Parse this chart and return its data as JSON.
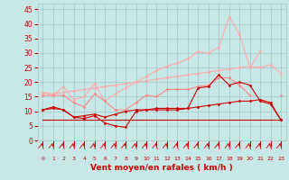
{
  "x": [
    0,
    1,
    2,
    3,
    4,
    5,
    6,
    7,
    8,
    9,
    10,
    11,
    12,
    13,
    14,
    15,
    16,
    17,
    18,
    19,
    20,
    21,
    22,
    23
  ],
  "series": [
    {
      "name": "line1_light_pink_upper",
      "color": "#ffaaaa",
      "linewidth": 0.8,
      "marker": "D",
      "markersize": 1.5,
      "values": [
        16.5,
        15.5,
        18.5,
        14.0,
        15.0,
        19.5,
        13.5,
        16.0,
        18.0,
        20.0,
        22.0,
        24.0,
        25.5,
        26.5,
        28.0,
        30.5,
        30.0,
        32.0,
        42.5,
        36.5,
        25.0,
        30.5,
        null,
        null
      ]
    },
    {
      "name": "line2_light_pink_diagonal",
      "color": "#ffaaaa",
      "linewidth": 0.8,
      "marker": "D",
      "markersize": 1.5,
      "values": [
        16.5,
        16.0,
        16.5,
        17.0,
        17.5,
        18.0,
        18.5,
        19.0,
        19.5,
        20.0,
        20.5,
        21.0,
        21.5,
        22.0,
        22.5,
        23.0,
        23.5,
        24.0,
        24.5,
        25.0,
        25.5,
        25.0,
        26.0,
        23.0
      ]
    },
    {
      "name": "line3_medium_pink",
      "color": "#ff8888",
      "linewidth": 0.8,
      "marker": "D",
      "markersize": 1.5,
      "values": [
        15.5,
        15.5,
        15.5,
        13.0,
        11.5,
        16.0,
        13.5,
        10.5,
        10.5,
        13.0,
        15.5,
        15.0,
        17.5,
        17.5,
        17.5,
        18.5,
        19.0,
        21.5,
        21.5,
        19.0,
        15.5,
        null,
        null,
        15.5
      ]
    },
    {
      "name": "line4_dark_red_zigzag",
      "color": "#cc0000",
      "linewidth": 0.8,
      "marker": "D",
      "markersize": 1.5,
      "values": [
        10.5,
        11.0,
        10.5,
        8.0,
        7.5,
        8.5,
        6.0,
        5.0,
        4.5,
        10.0,
        10.5,
        10.5,
        10.5,
        10.5,
        11.0,
        18.0,
        18.5,
        22.5,
        19.0,
        20.0,
        19.0,
        13.5,
        12.5,
        7.0
      ]
    },
    {
      "name": "line5_dark_red_gradual",
      "color": "#cc0000",
      "linewidth": 0.8,
      "marker": "D",
      "markersize": 1.5,
      "values": [
        10.5,
        11.5,
        10.5,
        8.0,
        8.5,
        9.0,
        8.0,
        9.0,
        10.0,
        10.5,
        10.5,
        11.0,
        11.0,
        11.0,
        11.0,
        11.5,
        12.0,
        12.5,
        13.0,
        13.5,
        13.5,
        14.0,
        13.0,
        7.0
      ]
    },
    {
      "name": "line6_dark_red_flat",
      "color": "#cc0000",
      "linewidth": 0.8,
      "marker": null,
      "markersize": 0,
      "values": [
        7.0,
        7.0,
        7.0,
        7.0,
        7.0,
        7.0,
        7.0,
        7.0,
        7.0,
        7.0,
        7.0,
        7.0,
        7.0,
        7.0,
        7.0,
        7.0,
        7.0,
        7.0,
        7.0,
        7.0,
        7.0,
        7.0,
        7.0,
        7.0
      ]
    }
  ],
  "background_color": "#c8e8e8",
  "grid_color": "#aacccc",
  "xlabel": "Vent moyen/en rafales ( km/h )",
  "xlim": [
    -0.5,
    23.5
  ],
  "ylim": [
    0,
    47
  ],
  "yticks": [
    0,
    5,
    10,
    15,
    20,
    25,
    30,
    35,
    40,
    45
  ],
  "xticks": [
    0,
    1,
    2,
    3,
    4,
    5,
    6,
    7,
    8,
    9,
    10,
    11,
    12,
    13,
    14,
    15,
    16,
    17,
    18,
    19,
    20,
    21,
    22,
    23
  ],
  "tick_color": "#cc0000",
  "label_color": "#cc0000"
}
